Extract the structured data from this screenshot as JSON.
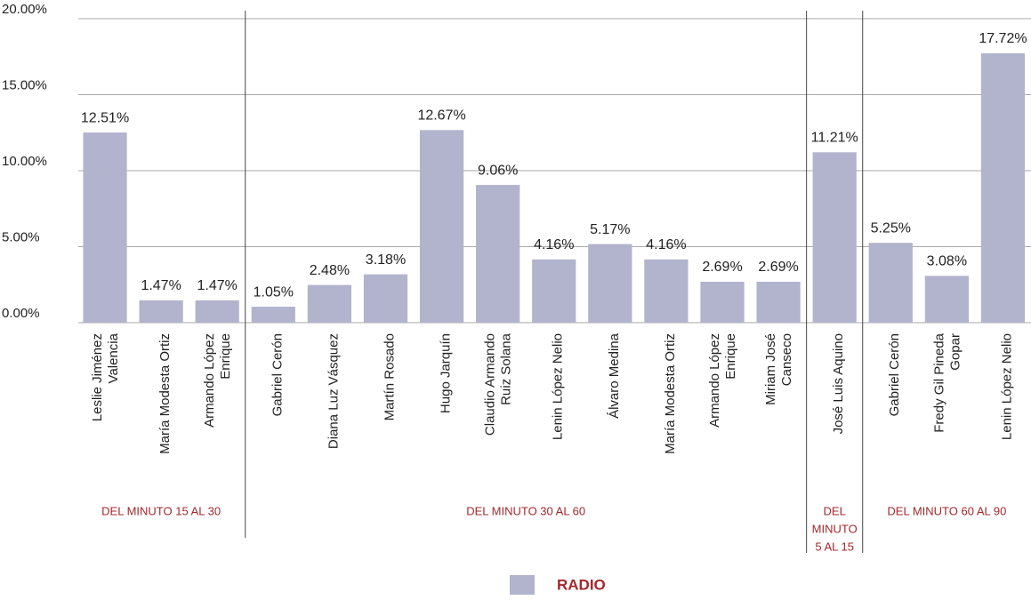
{
  "chart_data": {
    "type": "bar",
    "series_name": "RADIO",
    "color": "#b2b3cc",
    "ylim": [
      0,
      20
    ],
    "yticks": [
      {
        "value": 0,
        "label": "0.00%"
      },
      {
        "value": 5,
        "label": "5.00%"
      },
      {
        "value": 10,
        "label": "10.00%"
      },
      {
        "value": 15,
        "label": "15.00%"
      },
      {
        "value": 20,
        "label": "20.00%"
      }
    ],
    "grid": true,
    "groups": [
      {
        "label": [
          "DEL MINUTO 15 AL 30"
        ],
        "categories": [
          [
            "Leslie Jiménez",
            "Valencia"
          ],
          [
            "María Modesta Ortiz"
          ],
          [
            "Armando López",
            "Enrique"
          ]
        ],
        "values": [
          12.51,
          1.47,
          1.47
        ],
        "value_labels": [
          "12.51%",
          "1.47%",
          "1.47%"
        ]
      },
      {
        "label": [
          "DEL MINUTO 30 AL 60"
        ],
        "categories": [
          [
            "Gabriel Cerón"
          ],
          [
            "Diana Luz Vásquez"
          ],
          [
            "Martín Rosado"
          ],
          [
            "Hugo Jarquín"
          ],
          [
            "Claudio Armando",
            "Ruiz Solana"
          ],
          [
            "Lenin López Nelio"
          ],
          [
            "Álvaro Medina"
          ],
          [
            "María Modesta Ortiz"
          ],
          [
            "Armando López",
            "Enrique"
          ],
          [
            "Miriam José",
            "Canseco"
          ]
        ],
        "values": [
          1.05,
          2.48,
          3.18,
          12.67,
          9.06,
          4.16,
          5.17,
          4.16,
          2.69,
          2.69
        ],
        "value_labels": [
          "1.05%",
          "2.48%",
          "3.18%",
          "12.67%",
          "9.06%",
          "4.16%",
          "5.17%",
          "4.16%",
          "2.69%",
          "2.69%"
        ]
      },
      {
        "label": [
          "DEL",
          "MINUTO",
          "5 AL 15"
        ],
        "categories": [
          [
            "José Luis Aquino"
          ]
        ],
        "values": [
          11.21
        ],
        "value_labels": [
          "11.21%"
        ]
      },
      {
        "label": [
          "DEL MINUTO 60 AL 90"
        ],
        "categories": [
          [
            "Gabriel Cerón"
          ],
          [
            "Fredy Gil Pineda",
            "Gopar"
          ],
          [
            "Lenin López Nelio"
          ]
        ],
        "values": [
          5.25,
          3.08,
          17.72
        ],
        "value_labels": [
          "5.25%",
          "3.08%",
          "17.72%"
        ]
      }
    ]
  }
}
